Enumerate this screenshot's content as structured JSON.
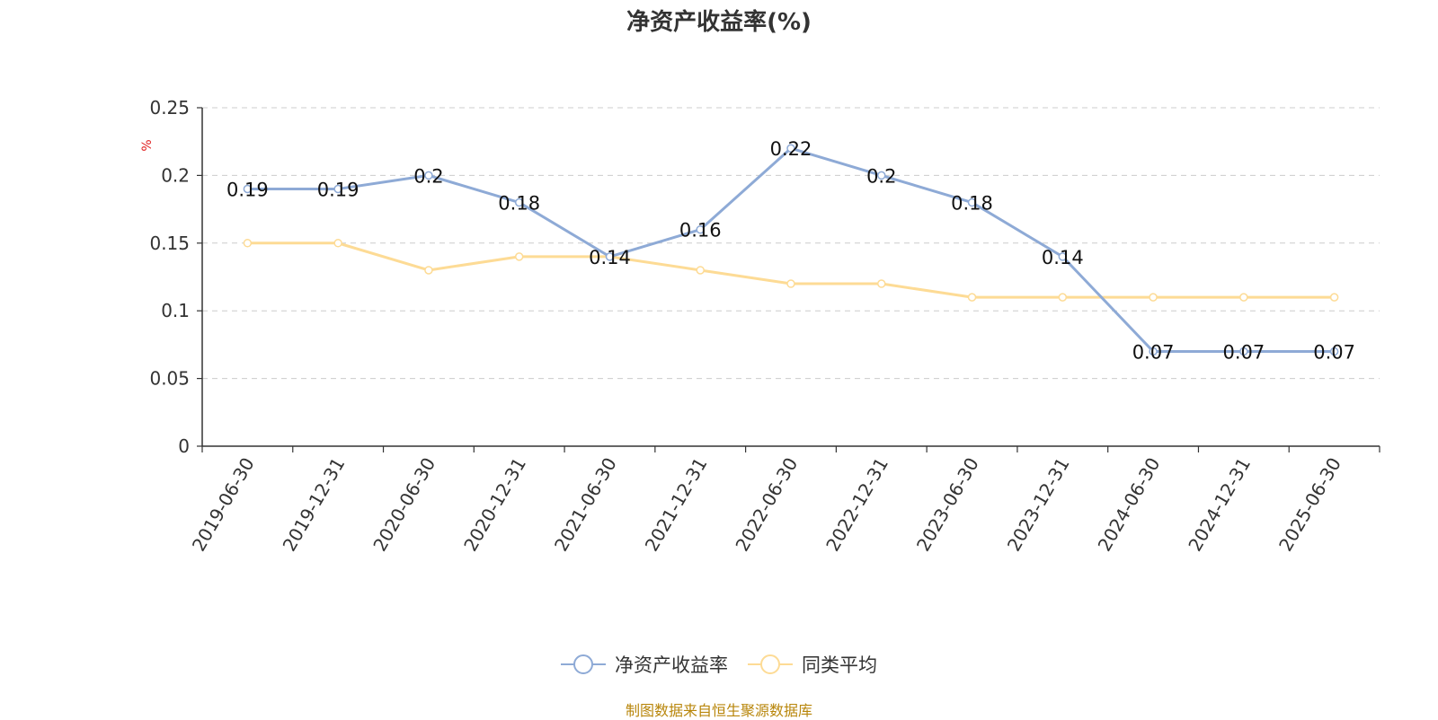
{
  "chart_data": {
    "type": "line",
    "title": "净资产收益率(%)",
    "ylabel": "%",
    "ylim": [
      0,
      0.25
    ],
    "yticks": [
      "0.25",
      "0.2",
      "0.15",
      "0.1",
      "0.05",
      "0"
    ],
    "categories": [
      "2019-06-30",
      "2019-12-31",
      "2020-06-30",
      "2020-12-31",
      "2021-06-30",
      "2021-12-31",
      "2022-06-30",
      "2022-12-31",
      "2023-06-30",
      "2023-12-31",
      "2024-06-30",
      "2024-12-31",
      "2025-06-30"
    ],
    "series": [
      {
        "name": "净资产收益率",
        "color": "#8eaad6",
        "values": [
          0.19,
          0.19,
          0.2,
          0.18,
          0.14,
          0.16,
          0.22,
          0.2,
          0.18,
          0.14,
          0.07,
          0.07,
          0.07
        ],
        "data_labels": [
          "0.19",
          "0.19",
          "0.2",
          "0.18",
          "0.14",
          "0.16",
          "0.22",
          "0.2",
          "0.18",
          "0.14",
          "0.07",
          "0.07",
          "0.07"
        ]
      },
      {
        "name": "同类平均",
        "color": "#fddb95",
        "values": [
          0.15,
          0.15,
          0.13,
          0.14,
          0.14,
          0.13,
          0.12,
          0.12,
          0.11,
          0.11,
          0.11,
          0.11,
          0.11
        ]
      }
    ],
    "grid": true,
    "legend_position": "bottom-center"
  },
  "source_note": "制图数据来自恒生聚源数据库"
}
